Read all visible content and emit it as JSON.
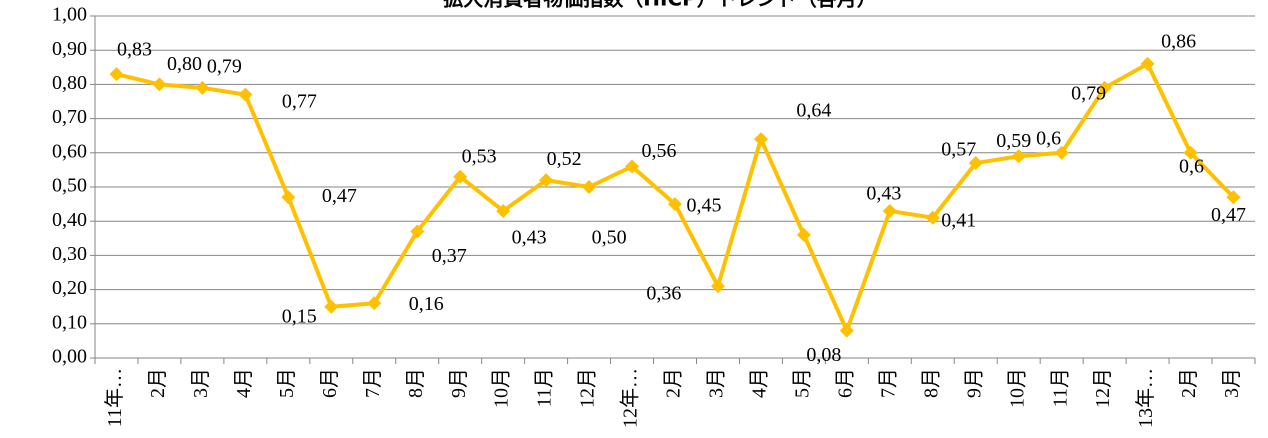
{
  "chart_data": {
    "type": "line",
    "title": "拡大消費者物価指数（HICP）トレンド（各月）",
    "categories": [
      "11年…",
      "2月",
      "3月",
      "4月",
      "5月",
      "6月",
      "7月",
      "8月",
      "9月",
      "10月",
      "11月",
      "12月",
      "12年…",
      "2月",
      "3月",
      "4月",
      "5月",
      "6月",
      "7月",
      "8月",
      "9月",
      "10月",
      "11月",
      "12月",
      "13年…",
      "2月",
      "3月"
    ],
    "series": [
      {
        "color": "#FFC000",
        "values": [
          0.83,
          0.8,
          0.79,
          0.77,
          0.47,
          0.15,
          0.16,
          0.37,
          0.53,
          0.43,
          0.52,
          0.5,
          0.56,
          0.45,
          0.21,
          0.64,
          0.36,
          0.08,
          0.43,
          0.41,
          0.57,
          0.59,
          0.6,
          0.79,
          0.86,
          0.6,
          0.47
        ],
        "value_labels": [
          "0,83",
          "0,80",
          "0,79",
          "0,77",
          "0,47",
          "0,15",
          "0,16",
          "0,37",
          "0,53",
          "0,43",
          "0,52",
          "0,50",
          "0,56",
          "0,45",
          null,
          "0,64",
          "0,36",
          "0,08",
          "0,43",
          "0,41",
          "0,57",
          "0,59",
          "0,6",
          "0,79",
          "0,86",
          "0,6",
          "0,47"
        ]
      }
    ],
    "ylim": [
      0,
      1
    ],
    "yticks": [
      {
        "value": 0,
        "label": "0,00"
      },
      {
        "value": 0.1,
        "label": "0,10"
      },
      {
        "value": 0.2,
        "label": "0,20"
      },
      {
        "value": 0.3,
        "label": "0,30"
      },
      {
        "value": 0.4,
        "label": "0,40"
      },
      {
        "value": 0.5,
        "label": "0,50"
      },
      {
        "value": 0.6,
        "label": "0,60"
      },
      {
        "value": 0.7,
        "label": "0,70"
      },
      {
        "value": 0.8,
        "label": "0,80"
      },
      {
        "value": 0.9,
        "label": "0,90"
      },
      {
        "value": 1,
        "label": "1,00"
      }
    ],
    "grid": true
  }
}
